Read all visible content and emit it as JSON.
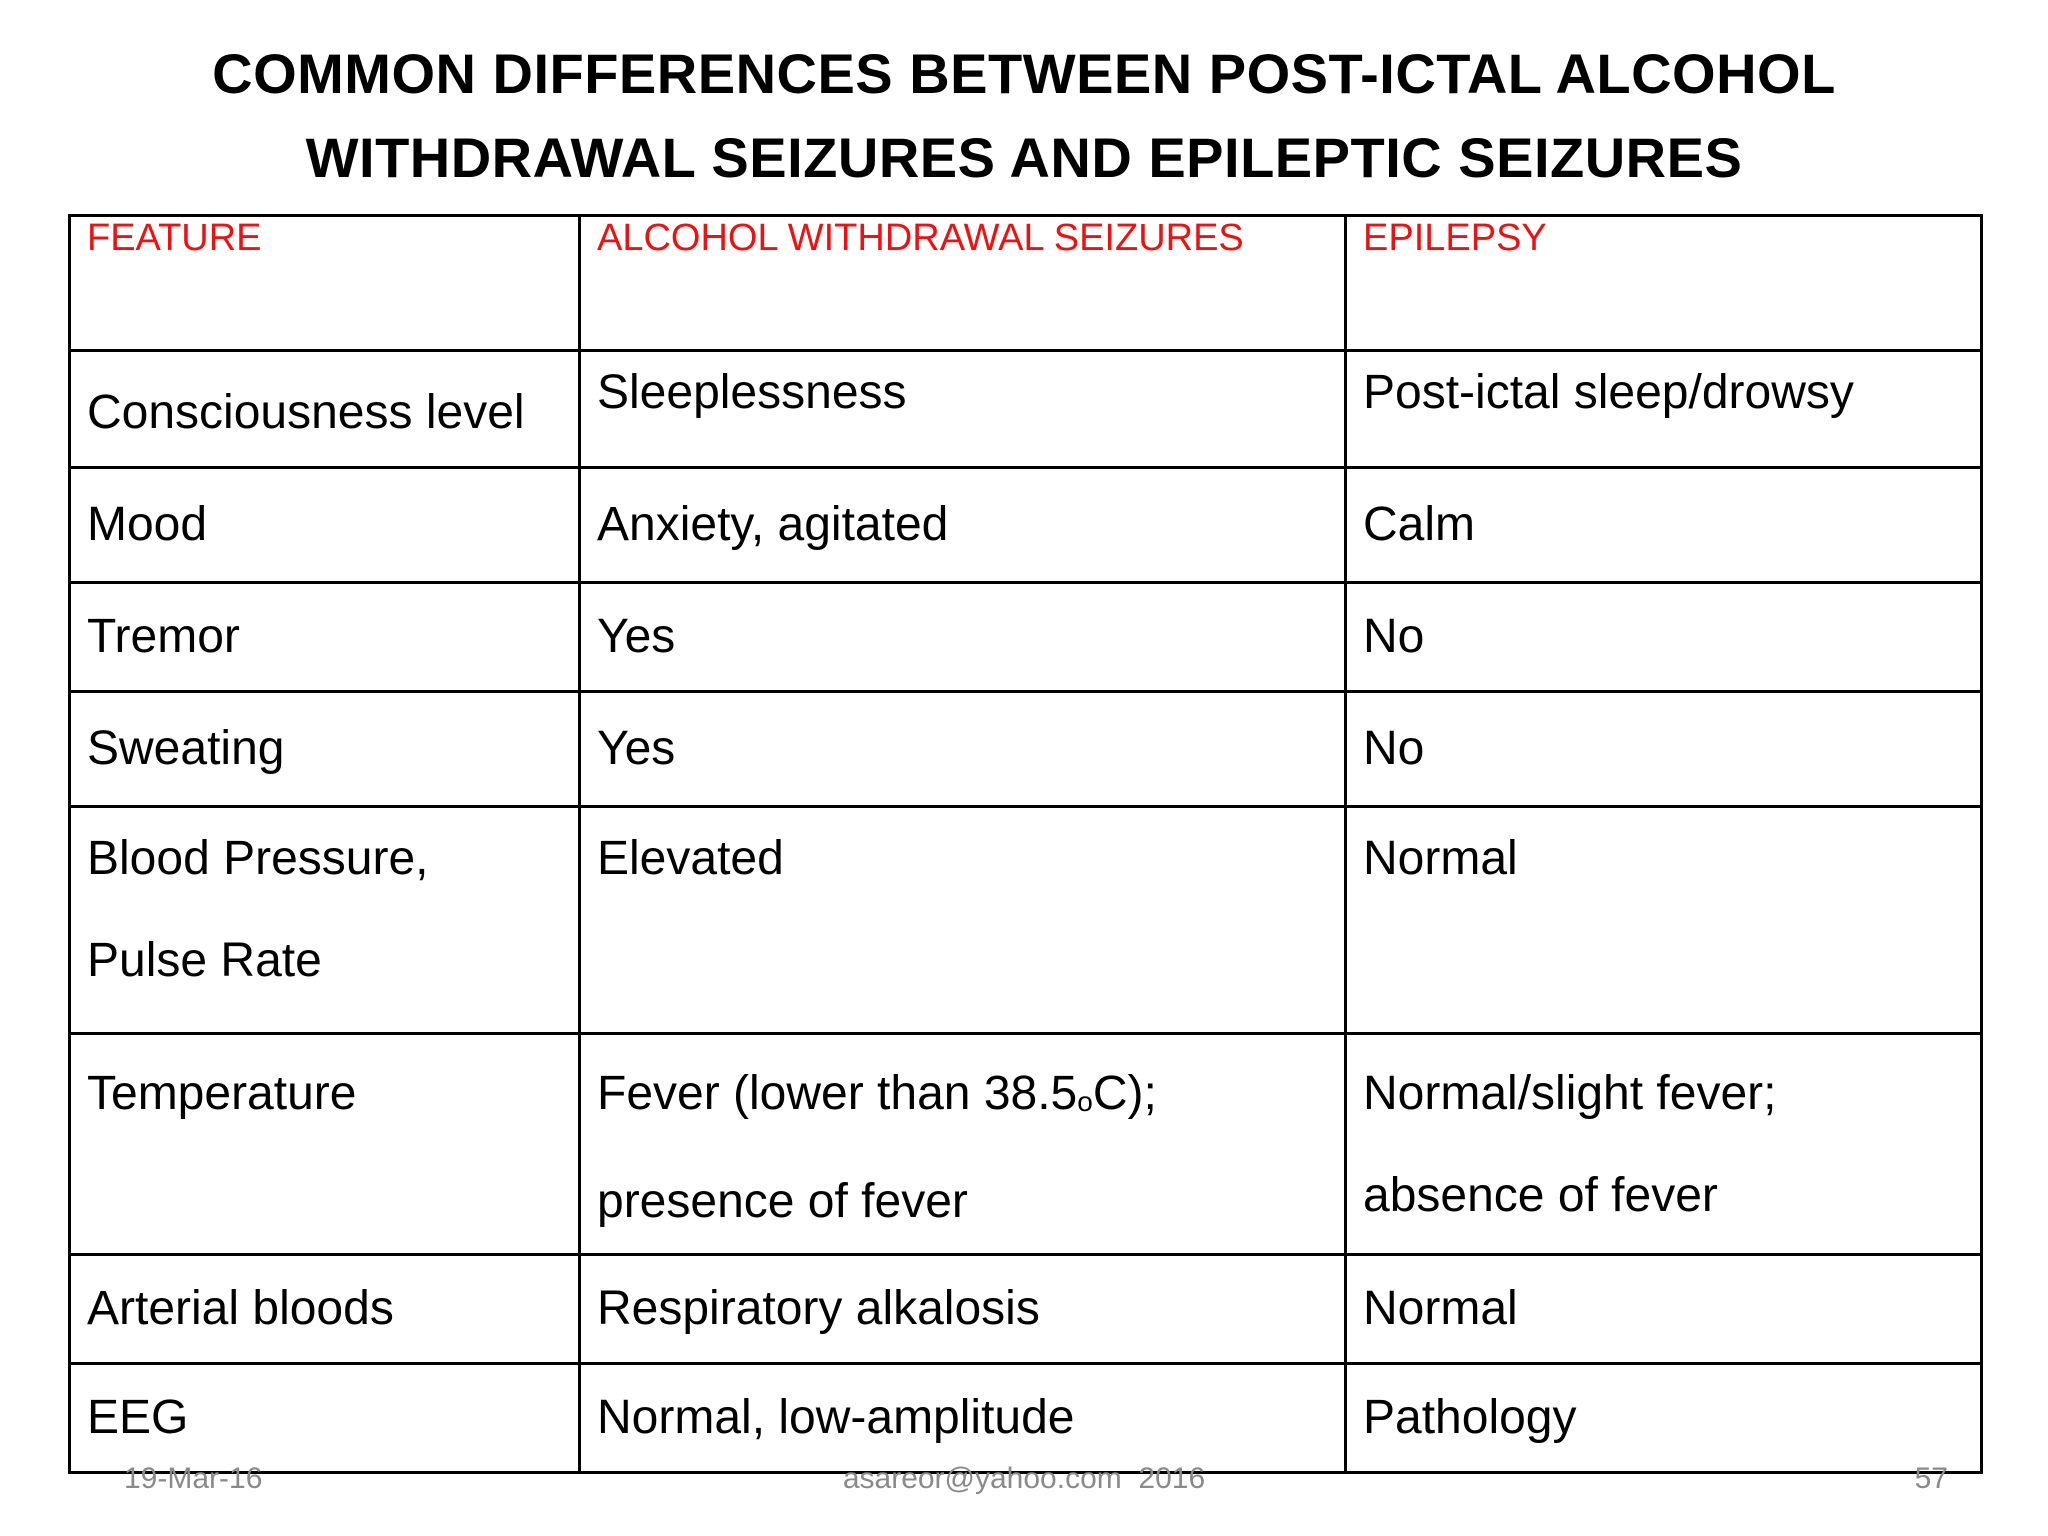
{
  "title": {
    "line1": "COMMON DIFFERENCES BETWEEN POST-ICTAL ALCOHOL",
    "line2": "WITHDRAWAL SEIZURES AND EPILEPTIC SEIZURES"
  },
  "table": {
    "headers": [
      "FEATURE",
      "ALCOHOL WITHDRAWAL SEIZURES",
      "EPILEPSY"
    ],
    "header_color": "#ee1111",
    "rows": [
      {
        "feature": "Consciousness level",
        "alcohol": "Sleeplessness",
        "epilepsy": "Post-ictal sleep/drowsy"
      },
      {
        "feature": "Mood",
        "alcohol": "Anxiety, agitated",
        "epilepsy": "Calm"
      },
      {
        "feature": "Tremor",
        "alcohol": "Yes",
        "epilepsy": "No"
      },
      {
        "feature": "Sweating",
        "alcohol": "Yes",
        "epilepsy": "No"
      },
      {
        "feature_line1": "Blood Pressure,",
        "feature_line2": "Pulse Rate",
        "alcohol": "Elevated",
        "epilepsy": "Normal"
      },
      {
        "feature": "Temperature",
        "alcohol_line1_pre": "Fever (lower than 38.5",
        "alcohol_line1_sup": "o",
        "alcohol_line1_post": "C);",
        "alcohol_line2": "presence of fever",
        "epilepsy_line1": "Normal/slight fever;",
        "epilepsy_line2": "absence of fever"
      },
      {
        "feature": "Arterial bloods",
        "alcohol": "Respiratory alkalosis",
        "epilepsy": "Normal"
      },
      {
        "feature": "EEG",
        "alcohol": "Normal, low-amplitude",
        "epilepsy": "Pathology"
      }
    ]
  },
  "footer": {
    "date": "19-Mar-16",
    "center": "asareor@yahoo.com  2016",
    "page": "57"
  }
}
